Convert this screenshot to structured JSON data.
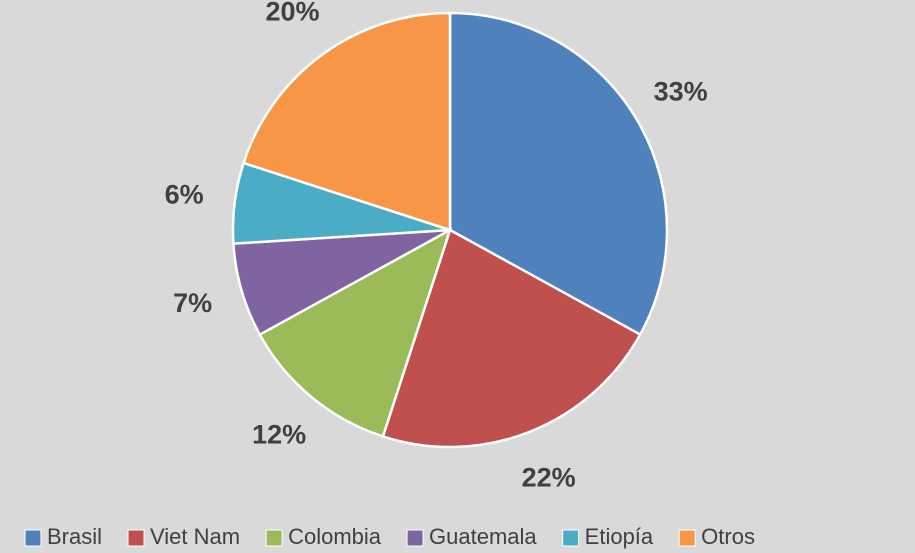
{
  "chart_data": {
    "type": "pie",
    "categories": [
      "Brasil",
      "Viet Nam",
      "Colombia",
      "Guatemala",
      "Etiopía",
      "Otros"
    ],
    "values": [
      33,
      22,
      12,
      7,
      6,
      20
    ],
    "value_labels": [
      "33%",
      "22%",
      "12%",
      "7%",
      "6%",
      "20%"
    ],
    "colors": [
      "#4f81bd",
      "#c0504d",
      "#9bbb59",
      "#8064a2",
      "#4bacc6",
      "#f79646"
    ],
    "legend": "bottom"
  }
}
